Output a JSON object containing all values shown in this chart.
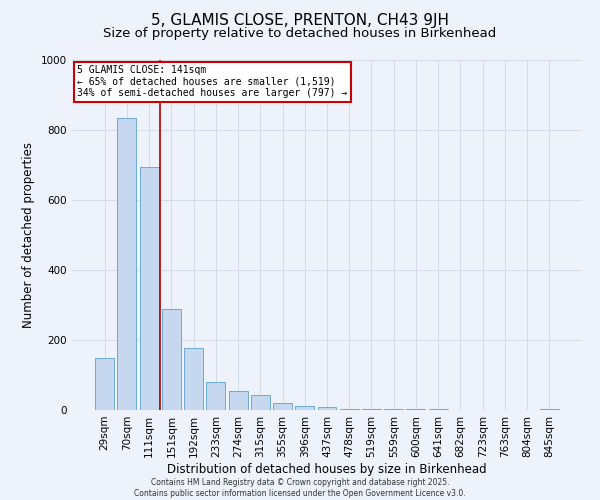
{
  "title": "5, GLAMIS CLOSE, PRENTON, CH43 9JH",
  "subtitle": "Size of property relative to detached houses in Birkenhead",
  "xlabel": "Distribution of detached houses by size in Birkenhead",
  "ylabel": "Number of detached properties",
  "categories": [
    "29sqm",
    "70sqm",
    "111sqm",
    "151sqm",
    "192sqm",
    "233sqm",
    "274sqm",
    "315sqm",
    "355sqm",
    "396sqm",
    "437sqm",
    "478sqm",
    "519sqm",
    "559sqm",
    "600sqm",
    "641sqm",
    "682sqm",
    "723sqm",
    "763sqm",
    "804sqm",
    "845sqm"
  ],
  "values": [
    150,
    835,
    695,
    290,
    178,
    80,
    55,
    42,
    20,
    12,
    8,
    2,
    2,
    2,
    2,
    2,
    0,
    0,
    0,
    0,
    2
  ],
  "bar_color": "#c5d8f0",
  "bar_edge_color": "#6baad4",
  "vline_x": 2.5,
  "vline_color": "#aa0000",
  "annotation_text": "5 GLAMIS CLOSE: 141sqm\n← 65% of detached houses are smaller (1,519)\n34% of semi-detached houses are larger (797) →",
  "annotation_box_facecolor": "#ffffff",
  "annotation_box_edge": "#cc0000",
  "bg_color": "#eef2fb",
  "plot_bg_color": "#eef2fb",
  "grid_color": "#c8d0e0",
  "footer": "Contains HM Land Registry data © Crown copyright and database right 2025.\nContains public sector information licensed under the Open Government Licence v3.0.",
  "ylim": [
    0,
    1000
  ],
  "title_fontsize": 11,
  "subtitle_fontsize": 9.5,
  "xlabel_fontsize": 8.5,
  "ylabel_fontsize": 8.5,
  "tick_fontsize": 7.5,
  "footer_fontsize": 5.5
}
